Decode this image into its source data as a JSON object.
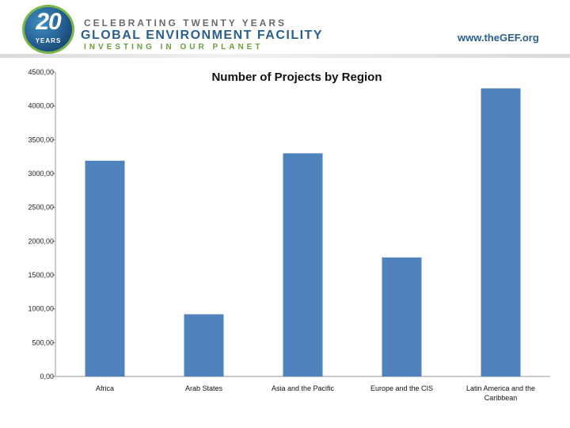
{
  "header": {
    "logo_number": "20",
    "logo_years": "YEARS",
    "celebrating": "CELEBRATING TWENTY YEARS",
    "org_name": "GLOBAL ENVIRONMENT FACILITY",
    "tagline": "INVESTING IN OUR PLANET",
    "url": "www.theGEF.org"
  },
  "colors": {
    "bar": "#4f81bd",
    "org_blue": "#2a5f8f",
    "green": "#7ab648"
  },
  "chart_data": {
    "type": "bar",
    "title": "Number of Projects by Region",
    "categories": [
      "Africa",
      "Arab States",
      "Asia and the Pacific",
      "Europe and the CIS",
      "Latin America and the Caribbean"
    ],
    "category_lines": [
      [
        "Africa"
      ],
      [
        "Arab States"
      ],
      [
        "Asia and the Pacific"
      ],
      [
        "Europe and the CIS"
      ],
      [
        "Latin America and the",
        "Caribbean"
      ]
    ],
    "values": [
      3190,
      920,
      3300,
      1760,
      4260
    ],
    "ylim": [
      0,
      4500
    ],
    "yticks": [
      0,
      500,
      1000,
      1500,
      2000,
      2500,
      3000,
      3500,
      4000,
      4500
    ],
    "ytick_labels": [
      "0,00",
      "500,00",
      "1000,00",
      "1500,00",
      "2000,00",
      "2500,00",
      "3000,00",
      "3500,00",
      "4000,00",
      "4500,00"
    ],
    "xlabel": "",
    "ylabel": "",
    "grid": false
  }
}
